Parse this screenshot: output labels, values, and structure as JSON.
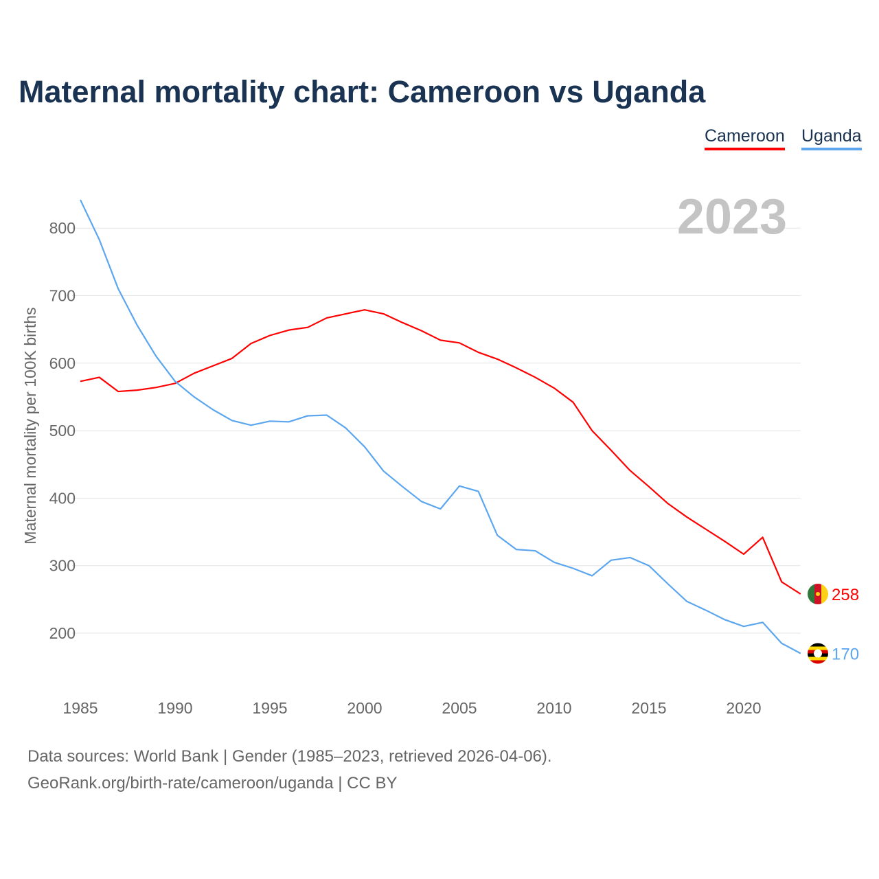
{
  "chart_data": {
    "type": "line",
    "title": "Maternal mortality chart: Cameroon vs Uganda",
    "xlabel": "",
    "ylabel": "Maternal mortality per 100K births",
    "xlim": [
      1985,
      2023
    ],
    "ylim": [
      130,
      860
    ],
    "x_ticks": [
      "1985",
      "1990",
      "1995",
      "2000",
      "2005",
      "2010",
      "2015",
      "2020"
    ],
    "y_ticks": [
      "200",
      "300",
      "400",
      "500",
      "600",
      "700",
      "800"
    ],
    "grid": true,
    "legend_position": "top-right",
    "year_label": "2023",
    "x": [
      1985,
      1986,
      1987,
      1988,
      1989,
      1990,
      1991,
      1992,
      1993,
      1994,
      1995,
      1996,
      1997,
      1998,
      1999,
      2000,
      2001,
      2002,
      2003,
      2004,
      2005,
      2006,
      2007,
      2008,
      2009,
      2010,
      2011,
      2012,
      2013,
      2014,
      2015,
      2016,
      2017,
      2018,
      2019,
      2020,
      2021,
      2022,
      2023
    ],
    "series": [
      {
        "name": "Cameroon",
        "color": "#ff0000",
        "end_label": "258",
        "values": [
          573,
          579,
          558,
          560,
          564,
          570,
          585,
          596,
          607,
          629,
          641,
          649,
          653,
          667,
          673,
          679,
          673,
          660,
          648,
          634,
          630,
          616,
          606,
          593,
          579,
          563,
          542,
          500,
          471,
          441,
          417,
          392,
          372,
          354,
          336,
          317,
          342,
          276,
          258
        ]
      },
      {
        "name": "Uganda",
        "color": "#5ba6ee",
        "end_label": "170",
        "values": [
          842,
          783,
          710,
          656,
          610,
          573,
          550,
          531,
          515,
          508,
          514,
          513,
          522,
          523,
          504,
          476,
          440,
          417,
          395,
          384,
          418,
          410,
          345,
          324,
          322,
          305,
          296,
          285,
          308,
          312,
          300,
          273,
          247,
          234,
          220,
          210,
          216,
          185,
          170
        ]
      }
    ]
  },
  "footer": {
    "line1": "Data sources: World Bank | Gender (1985–2023, retrieved 2026-04-06).",
    "line2": "GeoRank.org/birth-rate/cameroon/uganda | CC BY"
  }
}
